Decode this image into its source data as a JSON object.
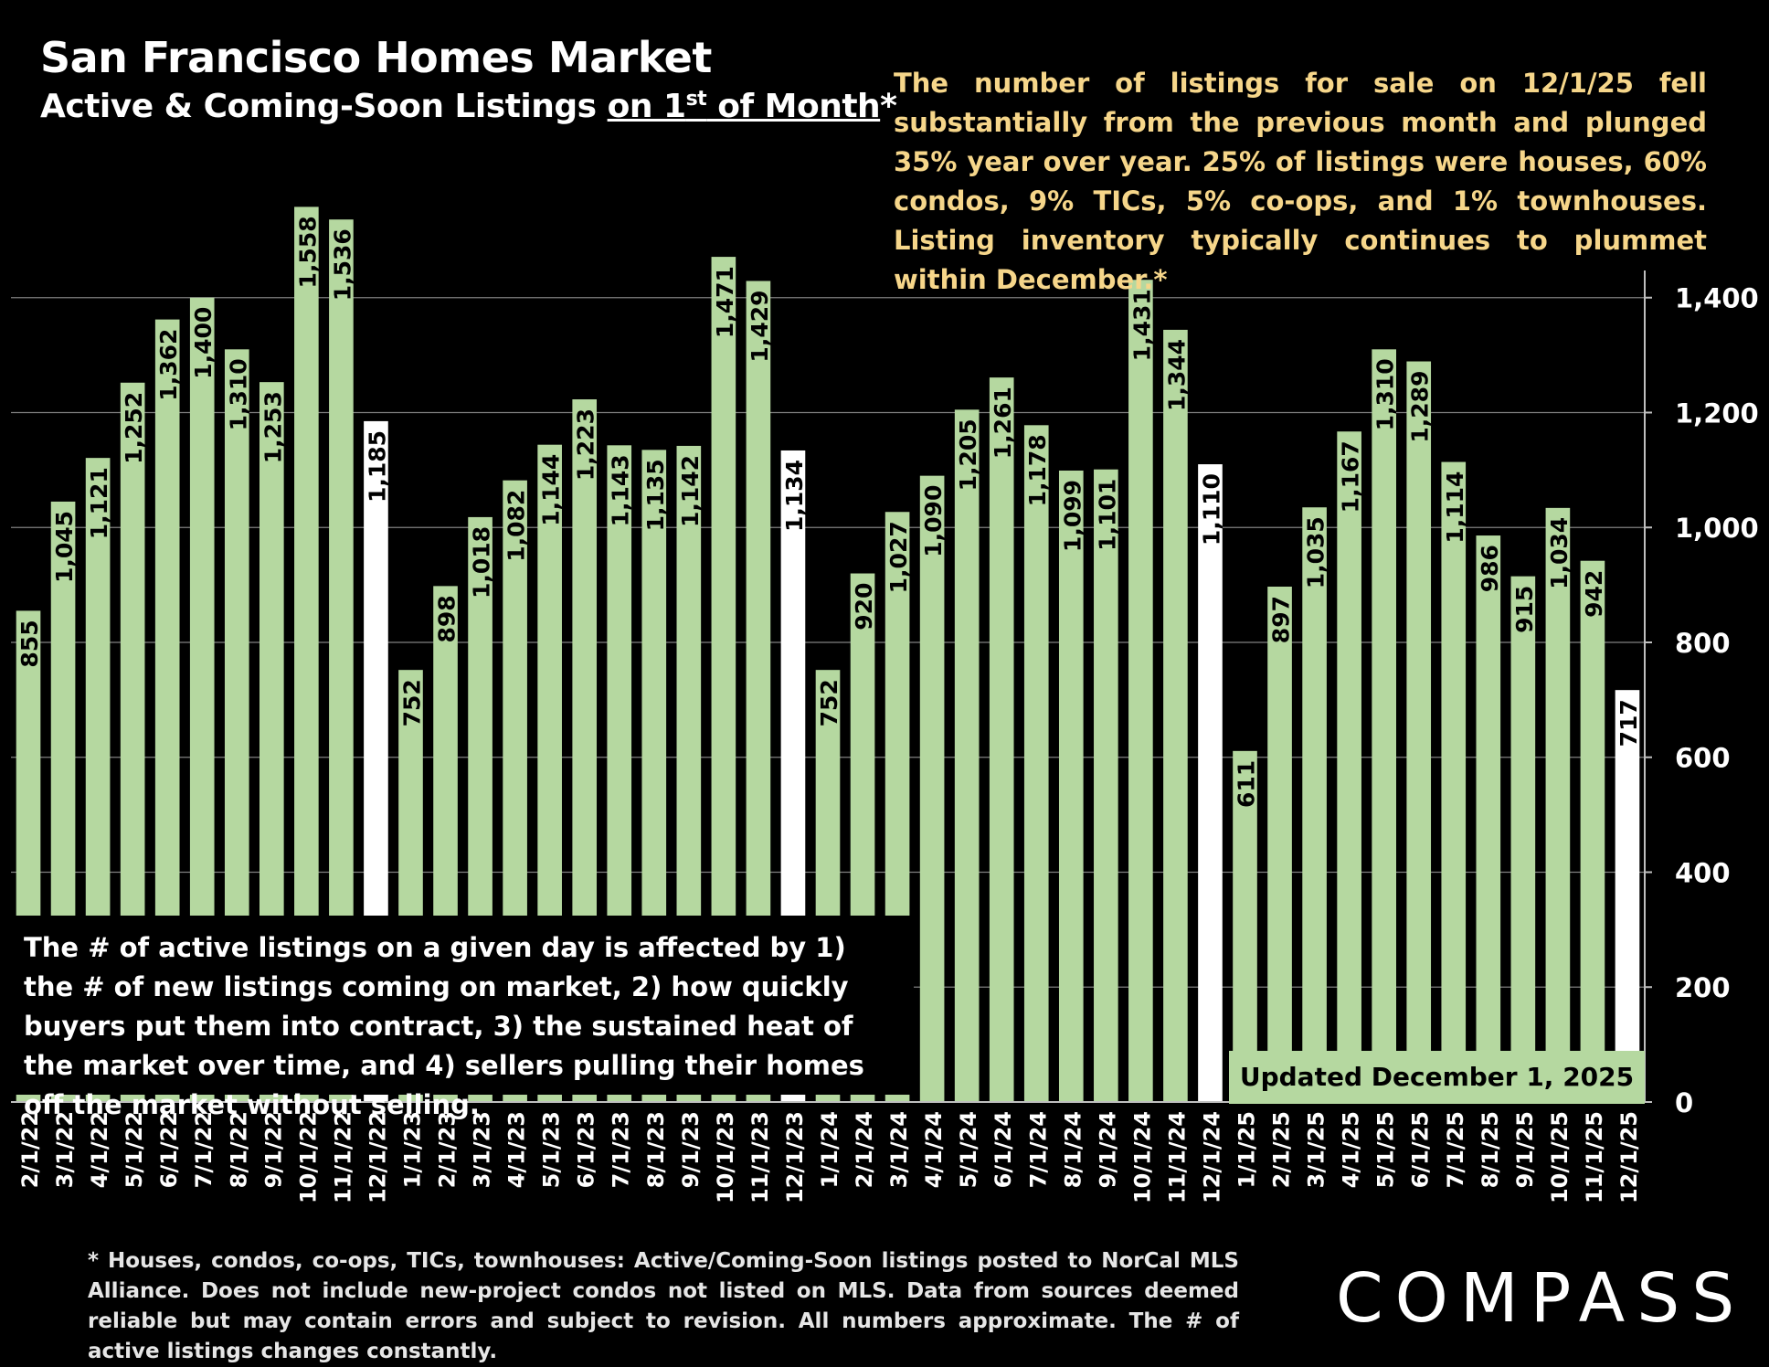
{
  "header": {
    "title": "San Francisco Homes Market",
    "subtitle_pre": "Active & Coming-Soon Listings ",
    "subtitle_u1": "on 1",
    "subtitle_sup": "st",
    "subtitle_u2": " of Month",
    "subtitle_post": "*"
  },
  "summary": "The number of listings for sale on 12/1/25 fell substantially from the previous month and plunged 35% year over year. 25% of listings were houses, 60% condos, 9% TICs, 5% co-ops, and 1% townhouses. Listing inventory typically continues to plummet within December.*",
  "note": "The # of active listings on a given day is affected by 1) the # of new listings coming on market, 2) how quickly buyers put them into contract, 3) the sustained heat of the market over time, and 4) sellers pulling their homes off the market without selling.",
  "updated": "Updated December 1, 2025",
  "footnote": "* Houses, condos, co-ops, TICs, townhouses: Active/Coming-Soon listings posted to NorCal MLS Alliance. Does not include new-project condos not listed on MLS. Data from sources deemed reliable but may contain errors and subject to revision. All numbers approximate. The # of active listings changes constantly.",
  "logo": "COMPASS",
  "colors": {
    "bar": "#b5d8a0",
    "highlight_bar": "#ffffff",
    "summary_text": "#f6d68a",
    "background": "#000000"
  },
  "chart_data": {
    "type": "bar",
    "categories": [
      "2/1/22",
      "3/1/22",
      "4/1/22",
      "5/1/22",
      "6/1/22",
      "7/1/22",
      "8/1/22",
      "9/1/22",
      "10/1/22",
      "11/1/22",
      "12/1/22",
      "1/1/23",
      "2/1/23",
      "3/1/23",
      "4/1/23",
      "5/1/23",
      "6/1/23",
      "7/1/23",
      "8/1/23",
      "9/1/23",
      "10/1/23",
      "11/1/23",
      "12/1/23",
      "1/1/24",
      "2/1/24",
      "3/1/24",
      "4/1/24",
      "5/1/24",
      "6/1/24",
      "7/1/24",
      "8/1/24",
      "9/1/24",
      "10/1/24",
      "11/1/24",
      "12/1/24",
      "1/1/25",
      "2/1/25",
      "3/1/25",
      "4/1/25",
      "5/1/25",
      "6/1/25",
      "7/1/25",
      "8/1/25",
      "9/1/25",
      "10/1/25",
      "11/1/25",
      "12/1/25"
    ],
    "values": [
      855,
      1045,
      1121,
      1252,
      1362,
      1400,
      1310,
      1253,
      1558,
      1536,
      1185,
      752,
      898,
      1018,
      1082,
      1144,
      1223,
      1143,
      1135,
      1142,
      1471,
      1429,
      1134,
      752,
      920,
      1027,
      1090,
      1205,
      1261,
      1178,
      1099,
      1101,
      1431,
      1344,
      1110,
      611,
      897,
      1035,
      1167,
      1310,
      1289,
      1114,
      986,
      915,
      1034,
      942,
      717
    ],
    "highlight_categories": [
      "12/1/22",
      "12/1/23",
      "12/1/24",
      "12/1/25"
    ],
    "y_ticks": [
      "0",
      "200",
      "400",
      "600",
      "800",
      "1,000",
      "1,200",
      "1,400"
    ],
    "ylim": [
      0,
      1460
    ],
    "y_axis_position": "right",
    "grid": true
  }
}
